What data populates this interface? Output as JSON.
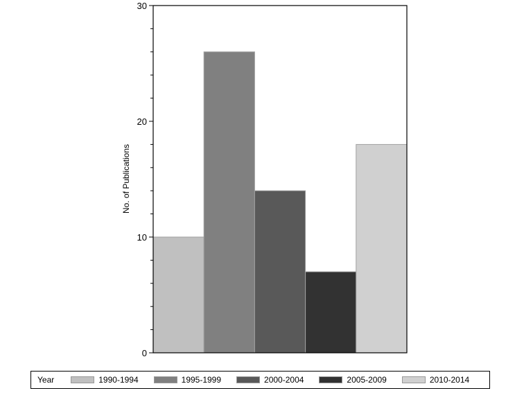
{
  "chart_data": {
    "type": "bar",
    "title": "",
    "xlabel": "",
    "ylabel": "No. of Publications",
    "ylim": [
      0,
      30
    ],
    "yticks": [
      0,
      10,
      20,
      30
    ],
    "minor_tick_step": 2,
    "grid": false,
    "legend_position": "bottom",
    "legend_title": "Year",
    "categories": [
      "1990-1994",
      "1995-1999",
      "2000-2004",
      "2005-2009",
      "2010-2014"
    ],
    "values": [
      10,
      26,
      14,
      7,
      18
    ],
    "colors": [
      "#c0c0c0",
      "#808080",
      "#595959",
      "#323232",
      "#d0d0d0"
    ]
  }
}
